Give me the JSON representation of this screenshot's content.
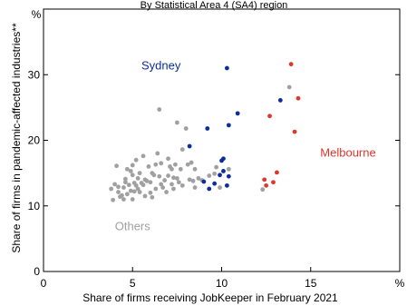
{
  "chart_data": {
    "type": "scatter",
    "subtitle": "By Statistical Area 4 (SA4) region",
    "xlabel": "Share of firms receiving JobKeeper in February 2021",
    "ylabel": "Share of firms in pandemic-affected industries**",
    "x_unit": "%",
    "y_unit": "%",
    "xlim": [
      0,
      20
    ],
    "ylim": [
      0,
      40
    ],
    "xticks": [
      0,
      5,
      10,
      15
    ],
    "yticks": [
      10,
      20,
      30
    ],
    "grid": false,
    "series": [
      {
        "name": "Others",
        "color": "#a0a0a0",
        "points": [
          [
            3.8,
            12.6
          ],
          [
            3.9,
            10.9
          ],
          [
            4.0,
            13.3
          ],
          [
            4.1,
            16.1
          ],
          [
            4.2,
            12.9
          ],
          [
            4.2,
            12.1
          ],
          [
            4.3,
            11.4
          ],
          [
            4.4,
            11.6
          ],
          [
            4.5,
            11.0
          ],
          [
            4.5,
            12.8
          ],
          [
            4.6,
            14.1
          ],
          [
            4.6,
            13.6
          ],
          [
            4.7,
            15.6
          ],
          [
            4.7,
            11.8
          ],
          [
            4.8,
            13.2
          ],
          [
            4.9,
            12.3
          ],
          [
            4.9,
            15.3
          ],
          [
            5.0,
            16.2
          ],
          [
            5.0,
            14.7
          ],
          [
            5.0,
            11.0
          ],
          [
            5.1,
            13.5
          ],
          [
            5.1,
            12.2
          ],
          [
            5.2,
            13.1
          ],
          [
            5.2,
            17.0
          ],
          [
            5.3,
            14.2
          ],
          [
            5.3,
            12.6
          ],
          [
            5.4,
            15.0
          ],
          [
            5.4,
            12.1
          ],
          [
            5.5,
            13.5
          ],
          [
            5.6,
            17.6
          ],
          [
            5.6,
            13.2
          ],
          [
            5.7,
            11.5
          ],
          [
            5.7,
            14.0
          ],
          [
            5.8,
            13.8
          ],
          [
            5.9,
            16.0
          ],
          [
            6.0,
            13.6
          ],
          [
            6.0,
            12.0
          ],
          [
            6.1,
            15.0
          ],
          [
            6.1,
            11.3
          ],
          [
            6.2,
            14.7
          ],
          [
            6.3,
            16.3
          ],
          [
            6.3,
            12.6
          ],
          [
            6.4,
            18.0
          ],
          [
            6.5,
            24.7
          ],
          [
            6.5,
            14.5
          ],
          [
            6.6,
            13.3
          ],
          [
            6.6,
            16.5
          ],
          [
            6.7,
            12.8
          ],
          [
            6.8,
            13.9
          ],
          [
            6.9,
            12.1
          ],
          [
            7.0,
            17.2
          ],
          [
            7.0,
            14.6
          ],
          [
            7.1,
            16.0
          ],
          [
            7.2,
            13.3
          ],
          [
            7.2,
            15.6
          ],
          [
            7.3,
            12.6
          ],
          [
            7.3,
            14.3
          ],
          [
            7.4,
            16.3
          ],
          [
            7.5,
            22.7
          ],
          [
            7.5,
            14.2
          ],
          [
            7.6,
            13.6
          ],
          [
            7.7,
            15.6
          ],
          [
            7.8,
            13.1
          ],
          [
            7.8,
            18.6
          ],
          [
            8.0,
            21.8
          ],
          [
            8.1,
            16.3
          ],
          [
            8.2,
            14.0
          ],
          [
            8.3,
            16.6
          ],
          [
            8.4,
            13.8
          ],
          [
            8.5,
            15.6
          ],
          [
            8.5,
            12.8
          ],
          [
            8.7,
            14.2
          ],
          [
            8.9,
            13.9
          ],
          [
            9.3,
            14.6
          ],
          [
            9.6,
            14.9
          ],
          [
            9.7,
            15.9
          ],
          [
            9.9,
            12.8
          ],
          [
            10.4,
            15.6
          ],
          [
            12.3,
            12.5
          ],
          [
            13.8,
            28.1
          ]
        ]
      },
      {
        "name": "Sydney",
        "color": "#0c2d9c",
        "points": [
          [
            8.2,
            19.1
          ],
          [
            9.0,
            13.7
          ],
          [
            9.2,
            21.8
          ],
          [
            9.3,
            12.6
          ],
          [
            9.6,
            13.4
          ],
          [
            9.9,
            14.7
          ],
          [
            10.0,
            16.9
          ],
          [
            10.1,
            15.3
          ],
          [
            10.1,
            17.2
          ],
          [
            10.3,
            31.0
          ],
          [
            10.3,
            13.1
          ],
          [
            10.4,
            22.3
          ],
          [
            10.4,
            14.5
          ],
          [
            10.9,
            24.1
          ],
          [
            13.3,
            26.1
          ]
        ]
      },
      {
        "name": "Melbourne",
        "color": "#e0362c",
        "points": [
          [
            12.4,
            14.0
          ],
          [
            12.5,
            13.1
          ],
          [
            12.7,
            23.7
          ],
          [
            12.9,
            13.6
          ],
          [
            13.1,
            15.1
          ],
          [
            13.9,
            31.6
          ],
          [
            14.1,
            21.3
          ],
          [
            14.3,
            26.4
          ]
        ]
      }
    ],
    "annotations": [
      {
        "text": "Sydney",
        "series": "Sydney",
        "x": 6.6,
        "y": 30.8
      },
      {
        "text": "Melbourne",
        "series": "Melbourne",
        "x": 17.1,
        "y": 17.5
      },
      {
        "text": "Others",
        "series": "Others",
        "x": 5.0,
        "y": 6.3
      }
    ]
  }
}
